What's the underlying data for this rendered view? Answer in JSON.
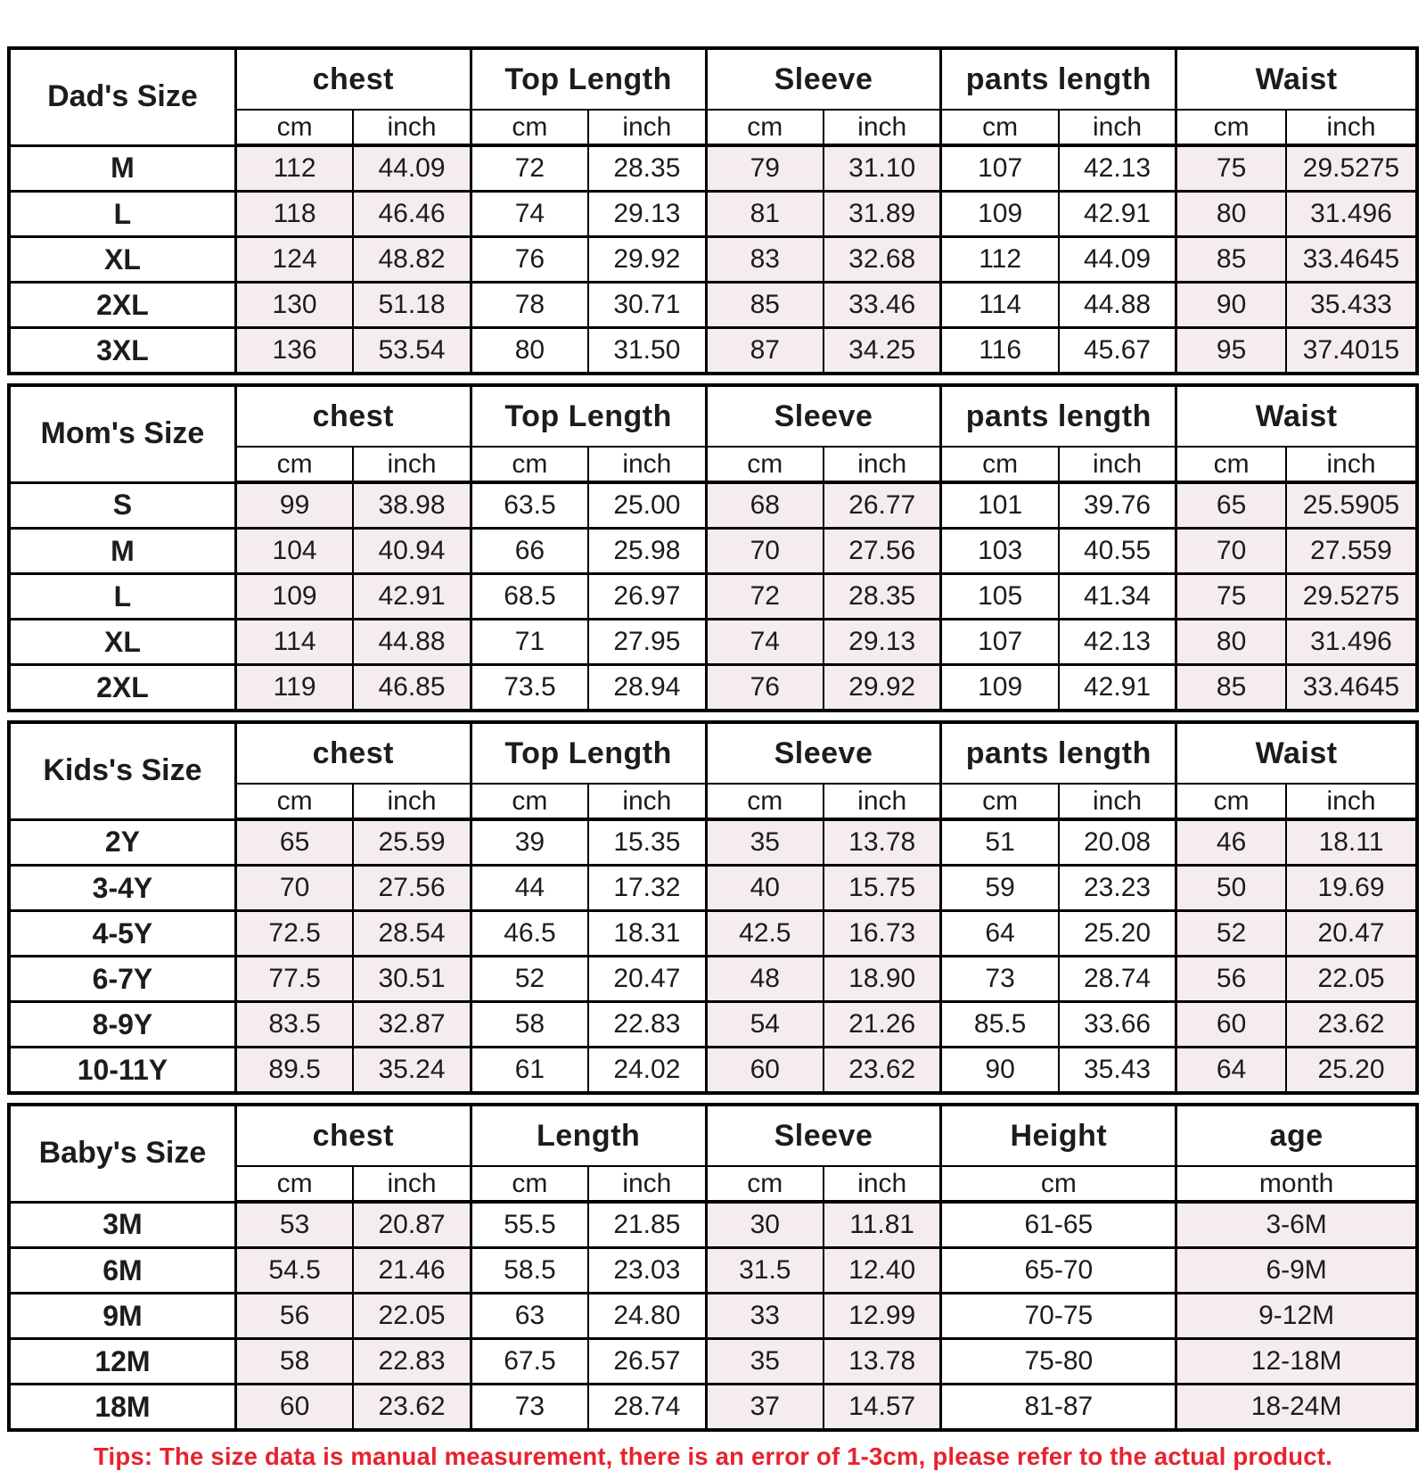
{
  "colors": {
    "shaded_cell": "#f5ecf2",
    "border": "#000000",
    "text": "#1c1c1c",
    "tips_red": "#e8222e",
    "background": "#ffffff"
  },
  "tips": "Tips: The size data is manual measurement, there is an error of 1-3cm, please refer to the actual product.",
  "sections": [
    {
      "size_label": "Dad's Size",
      "columns": [
        {
          "label": "chest",
          "sub": [
            "cm",
            "inch"
          ],
          "shaded": true
        },
        {
          "label": "Top Length",
          "sub": [
            "cm",
            "inch"
          ],
          "shaded": false
        },
        {
          "label": "Sleeve",
          "sub": [
            "cm",
            "inch"
          ],
          "shaded": true
        },
        {
          "label": "pants length",
          "sub": [
            "cm",
            "inch"
          ],
          "shaded": false
        },
        {
          "label": "Waist",
          "sub": [
            "cm",
            "inch"
          ],
          "shaded": true
        }
      ],
      "rows": [
        {
          "size": "M",
          "values": [
            "112",
            "44.09",
            "72",
            "28.35",
            "79",
            "31.10",
            "107",
            "42.13",
            "75",
            "29.5275"
          ]
        },
        {
          "size": "L",
          "values": [
            "118",
            "46.46",
            "74",
            "29.13",
            "81",
            "31.89",
            "109",
            "42.91",
            "80",
            "31.496"
          ]
        },
        {
          "size": "XL",
          "values": [
            "124",
            "48.82",
            "76",
            "29.92",
            "83",
            "32.68",
            "112",
            "44.09",
            "85",
            "33.4645"
          ]
        },
        {
          "size": "2XL",
          "values": [
            "130",
            "51.18",
            "78",
            "30.71",
            "85",
            "33.46",
            "114",
            "44.88",
            "90",
            "35.433"
          ]
        },
        {
          "size": "3XL",
          "values": [
            "136",
            "53.54",
            "80",
            "31.50",
            "87",
            "34.25",
            "116",
            "45.67",
            "95",
            "37.4015"
          ]
        }
      ]
    },
    {
      "size_label": "Mom's Size",
      "columns": [
        {
          "label": "chest",
          "sub": [
            "cm",
            "inch"
          ],
          "shaded": true
        },
        {
          "label": "Top Length",
          "sub": [
            "cm",
            "inch"
          ],
          "shaded": false
        },
        {
          "label": "Sleeve",
          "sub": [
            "cm",
            "inch"
          ],
          "shaded": true
        },
        {
          "label": "pants length",
          "sub": [
            "cm",
            "inch"
          ],
          "shaded": false
        },
        {
          "label": "Waist",
          "sub": [
            "cm",
            "inch"
          ],
          "shaded": true
        }
      ],
      "rows": [
        {
          "size": "S",
          "values": [
            "99",
            "38.98",
            "63.5",
            "25.00",
            "68",
            "26.77",
            "101",
            "39.76",
            "65",
            "25.5905"
          ]
        },
        {
          "size": "M",
          "values": [
            "104",
            "40.94",
            "66",
            "25.98",
            "70",
            "27.56",
            "103",
            "40.55",
            "70",
            "27.559"
          ]
        },
        {
          "size": "L",
          "values": [
            "109",
            "42.91",
            "68.5",
            "26.97",
            "72",
            "28.35",
            "105",
            "41.34",
            "75",
            "29.5275"
          ]
        },
        {
          "size": "XL",
          "values": [
            "114",
            "44.88",
            "71",
            "27.95",
            "74",
            "29.13",
            "107",
            "42.13",
            "80",
            "31.496"
          ]
        },
        {
          "size": "2XL",
          "values": [
            "119",
            "46.85",
            "73.5",
            "28.94",
            "76",
            "29.92",
            "109",
            "42.91",
            "85",
            "33.4645"
          ]
        }
      ]
    },
    {
      "size_label": "Kids's Size",
      "columns": [
        {
          "label": "chest",
          "sub": [
            "cm",
            "inch"
          ],
          "shaded": true
        },
        {
          "label": "Top Length",
          "sub": [
            "cm",
            "inch"
          ],
          "shaded": false
        },
        {
          "label": "Sleeve",
          "sub": [
            "cm",
            "inch"
          ],
          "shaded": true
        },
        {
          "label": "pants length",
          "sub": [
            "cm",
            "inch"
          ],
          "shaded": false
        },
        {
          "label": "Waist",
          "sub": [
            "cm",
            "inch"
          ],
          "shaded": true
        }
      ],
      "rows": [
        {
          "size": "2Y",
          "values": [
            "65",
            "25.59",
            "39",
            "15.35",
            "35",
            "13.78",
            "51",
            "20.08",
            "46",
            "18.11"
          ]
        },
        {
          "size": "3-4Y",
          "values": [
            "70",
            "27.56",
            "44",
            "17.32",
            "40",
            "15.75",
            "59",
            "23.23",
            "50",
            "19.69"
          ]
        },
        {
          "size": "4-5Y",
          "values": [
            "72.5",
            "28.54",
            "46.5",
            "18.31",
            "42.5",
            "16.73",
            "64",
            "25.20",
            "52",
            "20.47"
          ]
        },
        {
          "size": "6-7Y",
          "values": [
            "77.5",
            "30.51",
            "52",
            "20.47",
            "48",
            "18.90",
            "73",
            "28.74",
            "56",
            "22.05"
          ]
        },
        {
          "size": "8-9Y",
          "values": [
            "83.5",
            "32.87",
            "58",
            "22.83",
            "54",
            "21.26",
            "85.5",
            "33.66",
            "60",
            "23.62"
          ]
        },
        {
          "size": "10-11Y",
          "values": [
            "89.5",
            "35.24",
            "61",
            "24.02",
            "60",
            "23.62",
            "90",
            "35.43",
            "64",
            "25.20"
          ]
        }
      ]
    },
    {
      "size_label": "Baby's Size",
      "columns": [
        {
          "label": "chest",
          "sub": [
            "cm",
            "inch"
          ],
          "shaded": true
        },
        {
          "label": "Length",
          "sub": [
            "cm",
            "inch"
          ],
          "shaded": false
        },
        {
          "label": "Sleeve",
          "sub": [
            "cm",
            "inch"
          ],
          "shaded": true
        },
        {
          "label": "Height",
          "sub": [
            "cm"
          ],
          "shaded": false
        },
        {
          "label": "age",
          "sub": [
            "month"
          ],
          "shaded": true
        }
      ],
      "rows": [
        {
          "size": "3M",
          "values": [
            "53",
            "20.87",
            "55.5",
            "21.85",
            "30",
            "11.81",
            "61-65",
            "3-6M"
          ]
        },
        {
          "size": "6M",
          "values": [
            "54.5",
            "21.46",
            "58.5",
            "23.03",
            "31.5",
            "12.40",
            "65-70",
            "6-9M"
          ]
        },
        {
          "size": "9M",
          "values": [
            "56",
            "22.05",
            "63",
            "24.80",
            "33",
            "12.99",
            "70-75",
            "9-12M"
          ]
        },
        {
          "size": "12M",
          "values": [
            "58",
            "22.83",
            "67.5",
            "26.57",
            "35",
            "13.78",
            "75-80",
            "12-18M"
          ]
        },
        {
          "size": "18M",
          "values": [
            "60",
            "23.62",
            "73",
            "28.74",
            "37",
            "14.57",
            "81-87",
            "18-24M"
          ]
        }
      ]
    }
  ]
}
